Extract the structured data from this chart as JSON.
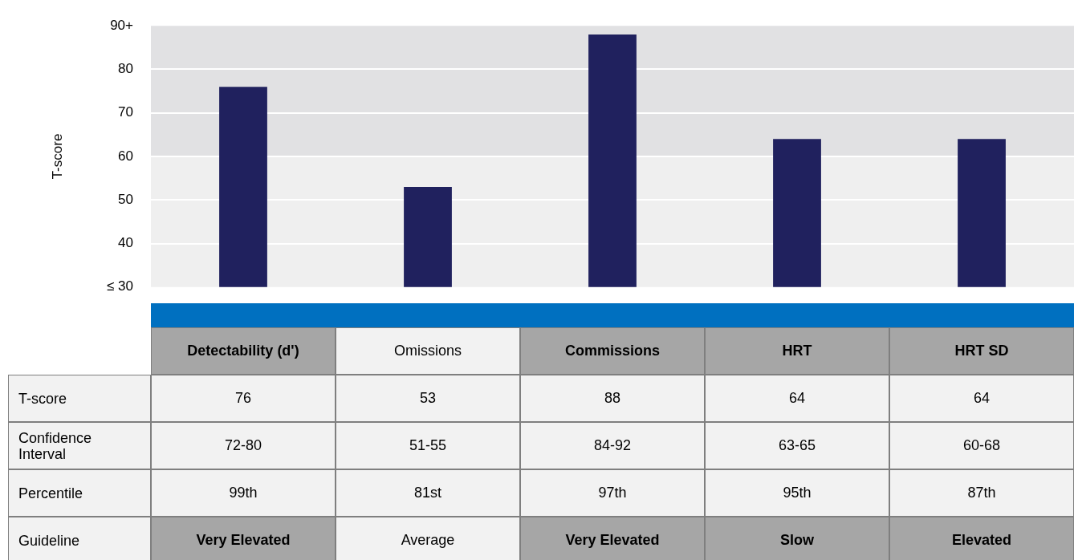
{
  "chart_data": {
    "type": "bar",
    "ylabel": "T-score",
    "categories": [
      "Detectability (d')",
      "Omissions",
      "Commissions",
      "HRT",
      "HRT SD"
    ],
    "values": [
      76,
      53,
      88,
      64,
      64
    ],
    "color": "#20215e",
    "ylim": [
      30,
      90
    ],
    "yticks": [
      {
        "value": 30,
        "label": "≤ 30"
      },
      40,
      50,
      60,
      70,
      80,
      {
        "value": 90,
        "label": "90+"
      }
    ],
    "grid": "y",
    "bands": [
      {
        "axis": "y",
        "from": 30,
        "to": 60,
        "color": "#efefef"
      },
      {
        "axis": "y",
        "from": 60,
        "to": 90,
        "color": "#e1e1e3"
      }
    ],
    "data_labels": true,
    "annotations": [
      "T-score",
      "Confidence Interval",
      "Percentile",
      "Guideline",
      "72-80",
      "51-55",
      "84-92",
      "63-65",
      "60-68",
      "99th",
      "81st",
      "97th",
      "95th",
      "87th",
      "Very Elevated",
      "Average",
      "Very Elevated",
      "Slow",
      "Elevated"
    ]
  }
}
